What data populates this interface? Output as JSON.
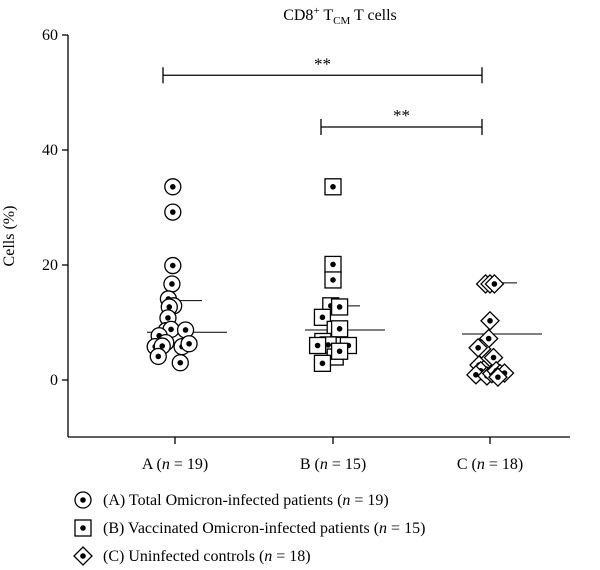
{
  "chart_data": {
    "type": "scatter",
    "title": {
      "prefix": "CD8",
      "sup": "+",
      "mid": " T",
      "sub": "CM",
      "suffix": " T cells"
    },
    "ylabel": "Cells (%)",
    "xlabel": "",
    "ylim": [
      0,
      60
    ],
    "yticks": [
      0,
      20,
      40,
      60
    ],
    "grid": false,
    "legend_position": "bottom",
    "categories": [
      {
        "prefix": "A (",
        "n": "n",
        "suffix": " = 19)"
      },
      {
        "prefix": "B (",
        "n": "n",
        "suffix": " = 15)"
      },
      {
        "prefix": "C (",
        "n": "n",
        "suffix": " = 18)"
      }
    ],
    "series": [
      {
        "marker": "circle",
        "legend": {
          "prefix": "(A) Total Omicron-infected patients (",
          "n": "n",
          "suffix": " = 19)"
        },
        "mean": 8.3,
        "sd_upper": 13.8,
        "points": [
          [
            -1,
            33.6
          ],
          [
            -1,
            29.2
          ],
          [
            -1,
            19.9
          ],
          [
            -1.4,
            16.7
          ],
          [
            -3,
            14.1
          ],
          [
            -0.6,
            12.9
          ],
          [
            -2.6,
            12.7
          ],
          [
            -3.2,
            10.8
          ],
          [
            -4,
            8.6
          ],
          [
            -1.8,
            8.8
          ],
          [
            4.8,
            8.7
          ],
          [
            -7.2,
            7.7
          ],
          [
            -4.2,
            6.5
          ],
          [
            -9,
            5.8
          ],
          [
            -5.8,
            5.9
          ],
          [
            3.2,
            5.8
          ],
          [
            6.4,
            6.3
          ],
          [
            -7.6,
            4.1
          ],
          [
            2.4,
            3.0
          ]
        ]
      },
      {
        "marker": "square",
        "legend": {
          "prefix": "(B) Vaccinated Omicron-infected patients (",
          "n": "n",
          "suffix": " = 15)"
        },
        "mean": 8.7,
        "sd_upper": 12.9,
        "points": [
          [
            0,
            33.6
          ],
          [
            0,
            20.1
          ],
          [
            0,
            17.4
          ],
          [
            -1,
            12.9
          ],
          [
            3,
            12.7
          ],
          [
            -4.8,
            10.9
          ],
          [
            1,
            8.8
          ],
          [
            3,
            8.9
          ],
          [
            -4.6,
            6.7
          ],
          [
            -2.2,
            6.1
          ],
          [
            -7,
            6.0
          ],
          [
            7,
            6.0
          ],
          [
            1,
            4.0
          ],
          [
            3,
            5.0
          ],
          [
            -4.8,
            2.9
          ]
        ]
      },
      {
        "marker": "diamond",
        "legend": {
          "prefix": "(C) Uninfected controls (",
          "n": "n",
          "suffix": " = 18)"
        },
        "mean": 8.0,
        "sd_upper": 16.9,
        "points": [
          [
            -2,
            16.7
          ],
          [
            0,
            16.7
          ],
          [
            2,
            16.7
          ],
          [
            0,
            10.3
          ],
          [
            -0.6,
            7.2
          ],
          [
            -3.8,
            5.4
          ],
          [
            -5.4,
            5.6
          ],
          [
            1.6,
            3.9
          ],
          [
            -5,
            2.6
          ],
          [
            -2.8,
            1.8
          ],
          [
            -4.2,
            1.6
          ],
          [
            -6.4,
            0.9
          ],
          [
            -1.4,
            0.7
          ],
          [
            0.8,
            1.1
          ],
          [
            2.8,
            1.6
          ],
          [
            4.6,
            1.1
          ],
          [
            6.6,
            1.2
          ],
          [
            3.6,
            0.5
          ]
        ]
      }
    ],
    "significance": [
      {
        "from": 0,
        "to": 2,
        "y": 53,
        "label": "**"
      },
      {
        "from": 1,
        "to": 2,
        "y": 44,
        "label": "**"
      }
    ]
  }
}
